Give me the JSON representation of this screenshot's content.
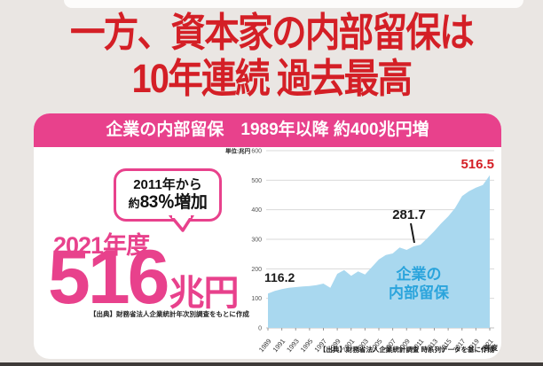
{
  "headline": {
    "line1": "一方、資本家の内部留保は",
    "line2": "10年連続 過去最高"
  },
  "card": {
    "header_title": "企業の内部留保　1989年以降 約400兆円増",
    "bubble": {
      "line1": "2011年から",
      "approx": "約",
      "emphasis": "83％増加"
    },
    "fiscal_year_label": "2021年度",
    "big_value": "516",
    "big_value_unit": "兆円",
    "source_left": "【出典】財務省法人企業統計年次別調査をもとに作成",
    "source_right": "【出典】財務省法人企業統計調査 時系列データを基に作成"
  },
  "colors": {
    "red": "#d41f26",
    "pink": "#e8418c",
    "area_blue": "#a9d8ef",
    "area_text_blue": "#2ba4dc",
    "background": "#eae6e3"
  },
  "chart_data": {
    "type": "area",
    "title": "企業の内部留保",
    "unit_label": "単位:兆円",
    "x_axis_suffix": "年度",
    "ylim": [
      0,
      600
    ],
    "ytick_interval": 100,
    "grid": true,
    "x": [
      1989,
      1990,
      1991,
      1992,
      1993,
      1994,
      1995,
      1996,
      1997,
      1998,
      1999,
      2000,
      2001,
      2002,
      2003,
      2004,
      2005,
      2006,
      2007,
      2008,
      2009,
      2010,
      2011,
      2012,
      2013,
      2014,
      2015,
      2016,
      2017,
      2018,
      2019,
      2020,
      2021
    ],
    "values": [
      116.2,
      125,
      131,
      136,
      138,
      140,
      142,
      145,
      150,
      136,
      183,
      196,
      176,
      191,
      181,
      206,
      232,
      247,
      252,
      272,
      264,
      276,
      281.7,
      304,
      328,
      354,
      377,
      406,
      446,
      463,
      475,
      484,
      516.5
    ],
    "xtick_years": [
      1989,
      1991,
      1993,
      1995,
      1997,
      1999,
      2001,
      2003,
      2005,
      2007,
      2009,
      2011,
      2013,
      2015,
      2017,
      2019,
      2021
    ],
    "plot": {
      "x0": 52,
      "x1": 302,
      "y0": 212,
      "y1": 12
    },
    "area_label": {
      "lines": [
        "企業の",
        "内部留保"
      ],
      "x": 222,
      "y": 157,
      "line_height": 21,
      "size": 17
    },
    "annotations": [
      {
        "label": "116.2",
        "x": 48,
        "y": 160,
        "anchor": "start",
        "color": "#1a1a1a",
        "size": 14
      },
      {
        "label": "281.7",
        "x": 211,
        "y": 89,
        "anchor": "middle",
        "color": "#1a1a1a",
        "size": 15,
        "pointer": [
          213,
          94,
          217,
          116
        ]
      },
      {
        "label": "516.5",
        "x": 307,
        "y": 32,
        "anchor": "end",
        "color": "#d41f26",
        "size": 15
      }
    ]
  }
}
